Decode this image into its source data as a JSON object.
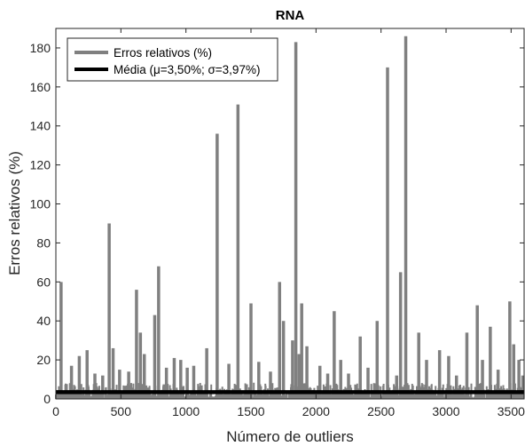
{
  "chart_data": {
    "type": "line",
    "title": "RNA",
    "xlabel": "Número de outliers",
    "ylabel": "Erros relativos (%)",
    "xlim": [
      0,
      3600
    ],
    "ylim": [
      0,
      190
    ],
    "xticks": [
      0,
      500,
      1000,
      1500,
      2000,
      2500,
      3000,
      3500
    ],
    "yticks": [
      0,
      20,
      40,
      60,
      80,
      100,
      120,
      140,
      160,
      180
    ],
    "grid": false,
    "legend_position": "top-left",
    "series": [
      {
        "name": "Erros relativos (%)",
        "color": "#808080",
        "baseline_max": 8,
        "spikes": [
          {
            "x": 40,
            "y": 60
          },
          {
            "x": 120,
            "y": 17
          },
          {
            "x": 180,
            "y": 22
          },
          {
            "x": 240,
            "y": 25
          },
          {
            "x": 300,
            "y": 13
          },
          {
            "x": 360,
            "y": 12
          },
          {
            "x": 410,
            "y": 90
          },
          {
            "x": 440,
            "y": 26
          },
          {
            "x": 490,
            "y": 15
          },
          {
            "x": 560,
            "y": 14
          },
          {
            "x": 620,
            "y": 56
          },
          {
            "x": 650,
            "y": 34
          },
          {
            "x": 680,
            "y": 23
          },
          {
            "x": 760,
            "y": 43
          },
          {
            "x": 790,
            "y": 68
          },
          {
            "x": 850,
            "y": 16
          },
          {
            "x": 910,
            "y": 21
          },
          {
            "x": 960,
            "y": 20
          },
          {
            "x": 1010,
            "y": 16
          },
          {
            "x": 1060,
            "y": 17
          },
          {
            "x": 1160,
            "y": 26
          },
          {
            "x": 1240,
            "y": 136
          },
          {
            "x": 1330,
            "y": 18
          },
          {
            "x": 1400,
            "y": 151
          },
          {
            "x": 1500,
            "y": 49
          },
          {
            "x": 1560,
            "y": 19
          },
          {
            "x": 1650,
            "y": 14
          },
          {
            "x": 1720,
            "y": 60
          },
          {
            "x": 1750,
            "y": 40
          },
          {
            "x": 1820,
            "y": 30
          },
          {
            "x": 1845,
            "y": 183
          },
          {
            "x": 1870,
            "y": 23
          },
          {
            "x": 1890,
            "y": 49
          },
          {
            "x": 1930,
            "y": 27
          },
          {
            "x": 2030,
            "y": 17
          },
          {
            "x": 2090,
            "y": 13
          },
          {
            "x": 2140,
            "y": 45
          },
          {
            "x": 2190,
            "y": 20
          },
          {
            "x": 2250,
            "y": 13
          },
          {
            "x": 2340,
            "y": 32
          },
          {
            "x": 2400,
            "y": 16
          },
          {
            "x": 2470,
            "y": 40
          },
          {
            "x": 2550,
            "y": 170
          },
          {
            "x": 2620,
            "y": 12
          },
          {
            "x": 2650,
            "y": 65
          },
          {
            "x": 2690,
            "y": 186
          },
          {
            "x": 2790,
            "y": 34
          },
          {
            "x": 2850,
            "y": 20
          },
          {
            "x": 2950,
            "y": 25
          },
          {
            "x": 3020,
            "y": 22
          },
          {
            "x": 3080,
            "y": 12
          },
          {
            "x": 3160,
            "y": 34
          },
          {
            "x": 3240,
            "y": 48
          },
          {
            "x": 3280,
            "y": 20
          },
          {
            "x": 3340,
            "y": 37
          },
          {
            "x": 3400,
            "y": 15
          },
          {
            "x": 3490,
            "y": 50
          },
          {
            "x": 3520,
            "y": 28
          },
          {
            "x": 3560,
            "y": 20
          },
          {
            "x": 3590,
            "y": 12
          }
        ]
      },
      {
        "name": "Média (μ=3,50%; σ=3,97%)",
        "color": "#000000",
        "value": 3.5
      }
    ]
  }
}
